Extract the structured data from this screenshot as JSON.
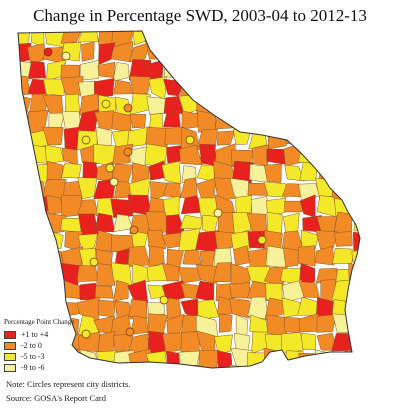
{
  "title": "Change in Percentage SWD, 2003-04 to 2012-13",
  "legend": {
    "title": "Percentage Point Change",
    "items": [
      {
        "label": "+1 to +4",
        "color": "#e8211e"
      },
      {
        "label": "-2 to 0",
        "color": "#f28a26"
      },
      {
        "label": "-5 to -3",
        "color": "#f3e928"
      },
      {
        "label": "-9 to -6",
        "color": "#f7f29a"
      }
    ]
  },
  "note": "Note: Circles represent city districts.",
  "source": "Source: GOSA's Report Card"
}
